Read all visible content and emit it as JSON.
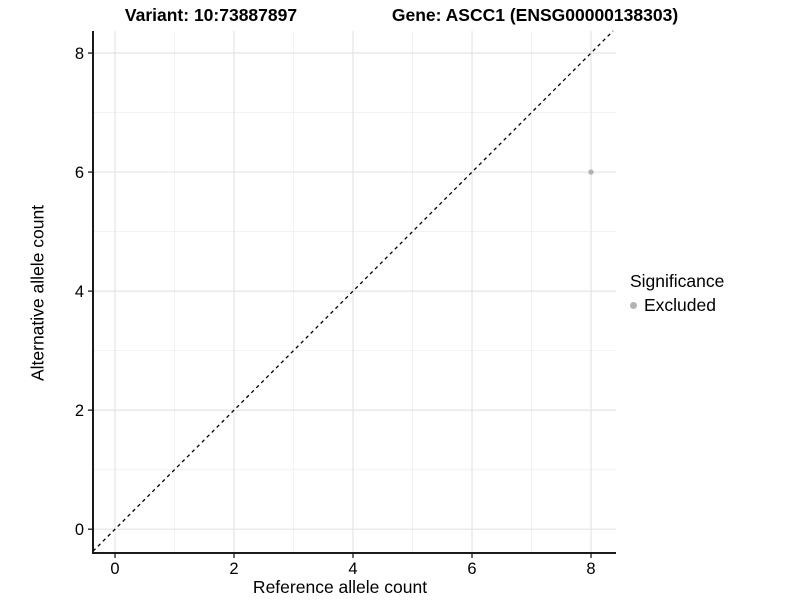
{
  "titles": {
    "left": "Variant: 10:73887897",
    "right": "Gene: ASCC1 (ENSG00000138303)"
  },
  "chart_data": {
    "type": "scatter",
    "title_left": "Variant: 10:73887897",
    "title_right": "Gene: ASCC1 (ENSG00000138303)",
    "xlabel": "Reference allele count",
    "ylabel": "Alternative allele count",
    "xlim": [
      -0.37,
      8.42
    ],
    "ylim": [
      -0.4,
      8.37
    ],
    "x_ticks": [
      0,
      2,
      4,
      6,
      8
    ],
    "y_ticks": [
      0,
      2,
      4,
      6,
      8
    ],
    "x_minor_ticks": [
      1,
      3,
      5,
      7
    ],
    "y_minor_ticks": [
      1,
      3,
      5,
      7
    ],
    "grid": "on",
    "points": [
      {
        "x": 8,
        "y": 6,
        "significance": "Excluded"
      }
    ],
    "reference_line": {
      "kind": "identity y=x",
      "style": "dashed",
      "color": "#000000"
    },
    "legend": {
      "position": "right",
      "title": "Significance",
      "items": [
        {
          "label": "Excluded",
          "color": "#b3b3b3"
        }
      ]
    }
  },
  "style_colors": {
    "point": "#b3b3b3",
    "grid_major": "#e4e4e4",
    "grid_minor": "#f0f0f0",
    "axis_line": "#1a1a1a",
    "tick_mark": "#1a1a1a",
    "tick_label": "#000000"
  }
}
